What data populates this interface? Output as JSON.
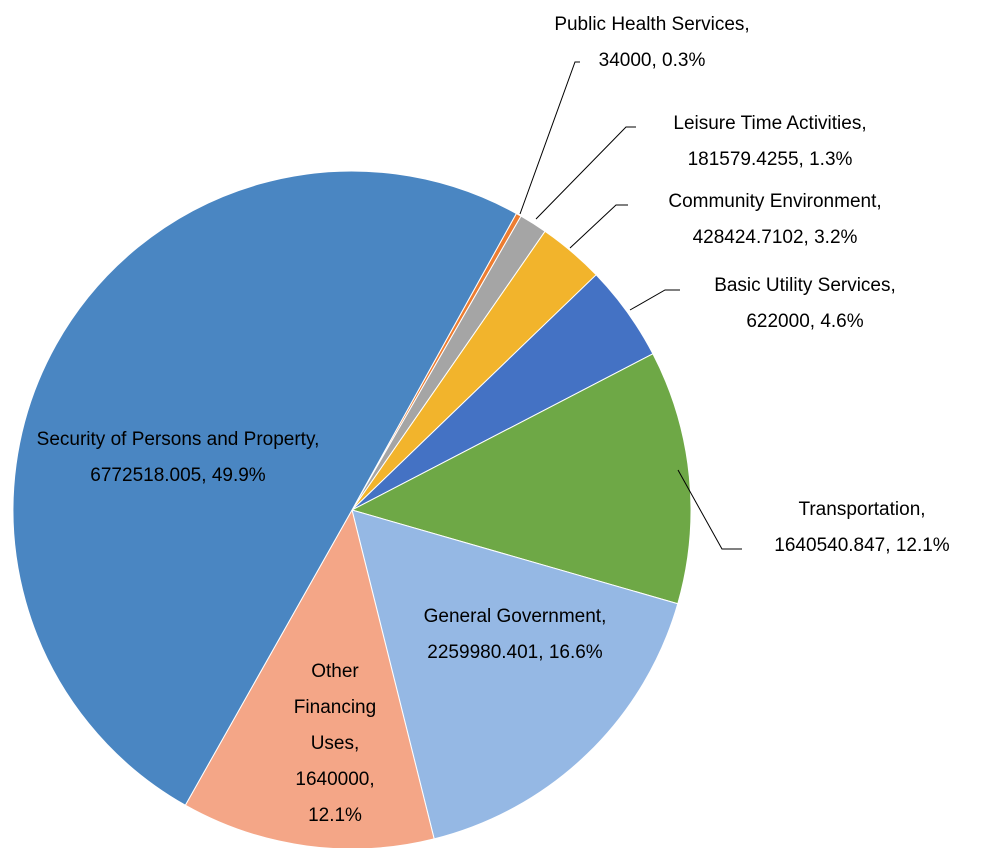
{
  "chart_data": {
    "type": "pie",
    "categories": [
      "Public Health Services",
      "Leisure Time Activities",
      "Community Environment",
      "Basic Utility Services",
      "Transportation",
      "General Government",
      "Other Financing Uses",
      "Security of Persons and Property"
    ],
    "values": [
      34000,
      181579.4255,
      428424.7102,
      622000,
      1640540.847,
      2259980.401,
      1640000,
      6772518.005
    ],
    "value_labels": [
      "0.3%",
      "1.3%",
      "3.2%",
      "4.6%",
      "12.1%",
      "16.6%",
      "12.1%",
      "49.9%"
    ],
    "separator": ", ",
    "colors": [
      "#ED7D31",
      "#A5A5A5",
      "#F2B42C",
      "#4472C4",
      "#6EA846",
      "#95B8E4",
      "#F4A687",
      "#4A86C2"
    ]
  }
}
